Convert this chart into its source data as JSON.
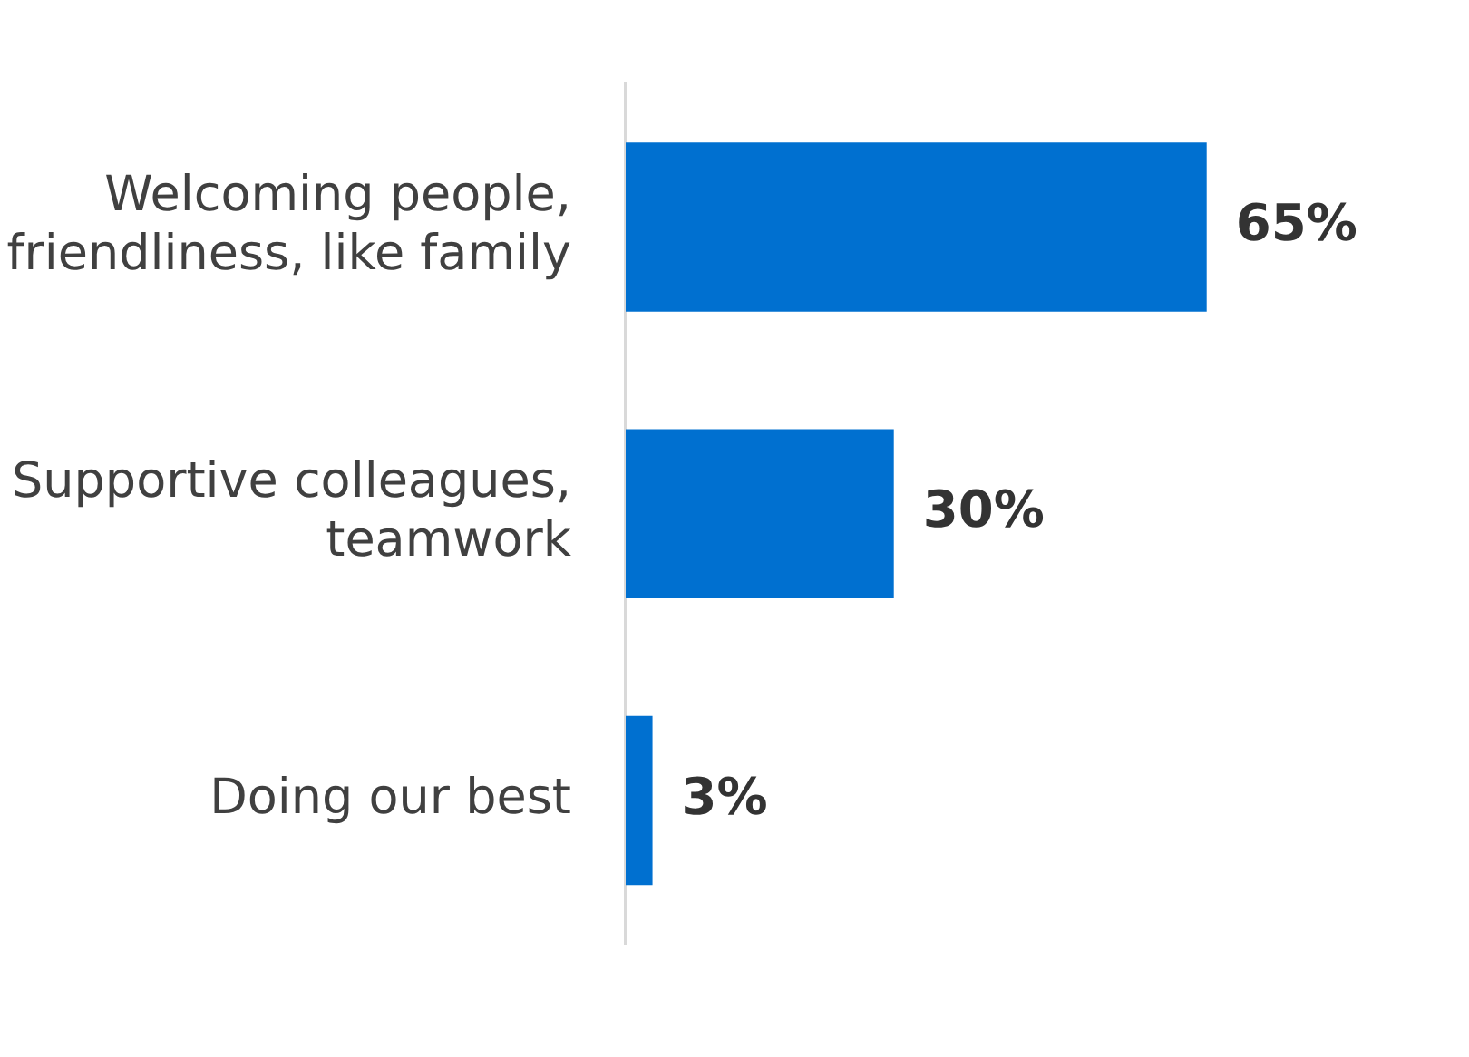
{
  "chart_data": {
    "type": "bar",
    "orientation": "horizontal",
    "categories": [
      "Welcoming people, friendliness, like family",
      "Supportive colleagues, teamwork",
      "Doing our best"
    ],
    "values": [
      65,
      30,
      3
    ],
    "color": "#0070d0",
    "value_labels": [
      "65%",
      "30%",
      "3%"
    ],
    "tick_labels": "y",
    "grid": false,
    "legend": false
  }
}
